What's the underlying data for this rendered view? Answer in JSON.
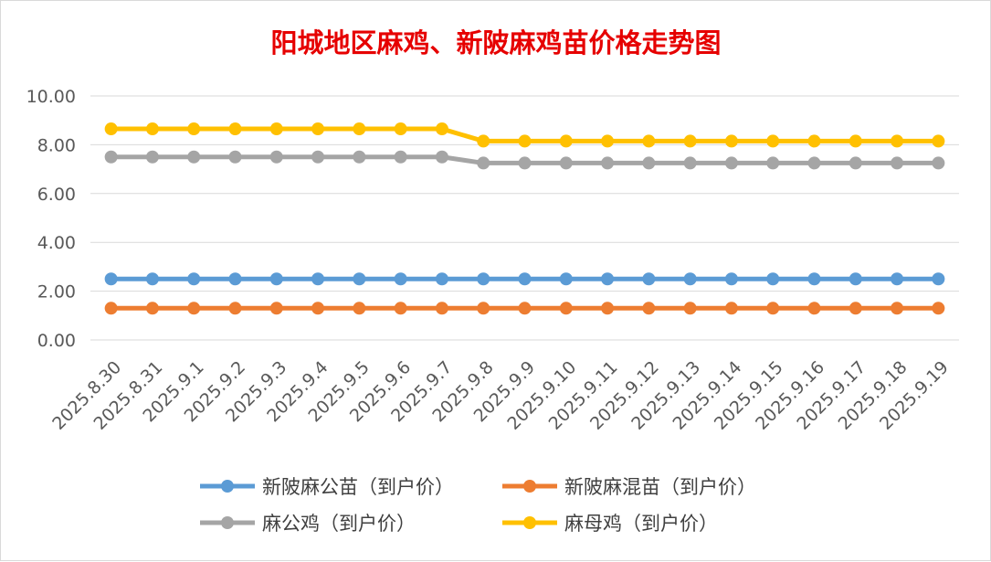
{
  "chart_data": {
    "type": "line",
    "title": "阳城地区麻鸡、新陂麻鸡苗价格走势图",
    "xlabel": "",
    "ylabel": "",
    "categories": [
      "2025.8.30",
      "2025.8.31",
      "2025.9.1",
      "2025.9.2",
      "2025.9.3",
      "2025.9.4",
      "2025.9.5",
      "2025.9.6",
      "2025.9.7",
      "2025.9.8",
      "2025.9.9",
      "2025.9.10",
      "2025.9.11",
      "2025.9.12",
      "2025.9.13",
      "2025.9.14",
      "2025.9.15",
      "2025.9.16",
      "2025.9.17",
      "2025.9.18",
      "2025.9.19"
    ],
    "ylim": [
      0,
      10
    ],
    "yticks": [
      "0.00",
      "2.00",
      "4.00",
      "6.00",
      "8.00",
      "10.00"
    ],
    "grid": true,
    "legend_position": "bottom",
    "series": [
      {
        "name": "新陂麻公苗（到户价）",
        "color": "#5b9bd5",
        "values": [
          2.5,
          2.5,
          2.5,
          2.5,
          2.5,
          2.5,
          2.5,
          2.5,
          2.5,
          2.5,
          2.5,
          2.5,
          2.5,
          2.5,
          2.5,
          2.5,
          2.5,
          2.5,
          2.5,
          2.5,
          2.5
        ]
      },
      {
        "name": "新陂麻混苗（到户价）",
        "color": "#ed7d31",
        "values": [
          1.3,
          1.3,
          1.3,
          1.3,
          1.3,
          1.3,
          1.3,
          1.3,
          1.3,
          1.3,
          1.3,
          1.3,
          1.3,
          1.3,
          1.3,
          1.3,
          1.3,
          1.3,
          1.3,
          1.3,
          1.3
        ]
      },
      {
        "name": "麻公鸡（到户价）",
        "color": "#a5a5a5",
        "values": [
          7.5,
          7.5,
          7.5,
          7.5,
          7.5,
          7.5,
          7.5,
          7.5,
          7.5,
          7.25,
          7.25,
          7.25,
          7.25,
          7.25,
          7.25,
          7.25,
          7.25,
          7.25,
          7.25,
          7.25,
          7.25
        ]
      },
      {
        "name": "麻母鸡（到户价）",
        "color": "#ffc000",
        "values": [
          8.65,
          8.65,
          8.65,
          8.65,
          8.65,
          8.65,
          8.65,
          8.65,
          8.65,
          8.15,
          8.15,
          8.15,
          8.15,
          8.15,
          8.15,
          8.15,
          8.15,
          8.15,
          8.15,
          8.15,
          8.15
        ]
      }
    ]
  }
}
